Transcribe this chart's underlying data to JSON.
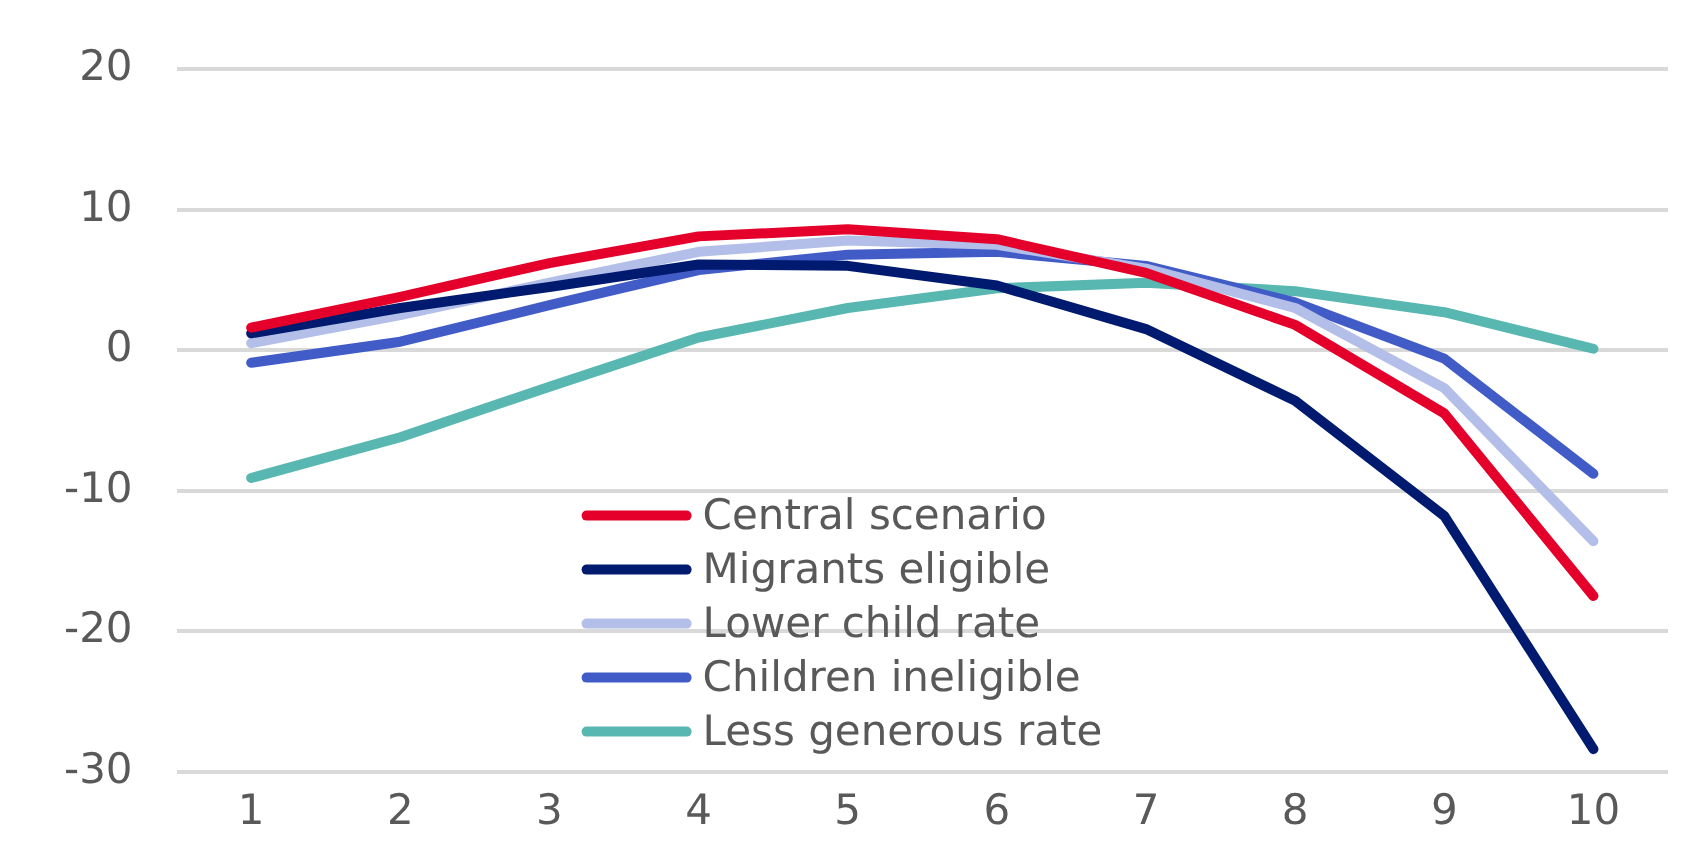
{
  "chart_data": {
    "type": "line",
    "categories": [
      "1",
      "2",
      "3",
      "4",
      "5",
      "6",
      "7",
      "8",
      "9",
      "10"
    ],
    "ylim": [
      -30,
      20
    ],
    "yticks": [
      -30,
      -20,
      -10,
      0,
      10,
      20
    ],
    "grid": "y",
    "legend": "bottom",
    "marker": "none",
    "line_style": "solid",
    "series": [
      {
        "name": "Central scenario",
        "color": "#e4002b",
        "values": [
          1.6,
          3.8,
          6.2,
          8.1,
          8.6,
          7.9,
          5.5,
          1.8,
          -4.5,
          -17.5
        ]
      },
      {
        "name": "Migrants eligible",
        "color": "#001a70",
        "values": [
          1.2,
          3.0,
          4.5,
          6.1,
          6.0,
          4.6,
          1.5,
          -3.6,
          -11.8,
          -28.4
        ]
      },
      {
        "name": "Lower child rate",
        "color": "#b3bfe8",
        "values": [
          0.5,
          2.5,
          4.8,
          7.0,
          7.8,
          7.5,
          5.8,
          3.0,
          -2.7,
          -13.6
        ]
      },
      {
        "name": "Children ineligible",
        "color": "#425cc7",
        "values": [
          -0.9,
          0.6,
          3.2,
          5.7,
          6.8,
          7.0,
          6.0,
          3.4,
          -0.6,
          -8.8
        ]
      },
      {
        "name": "Less generous rate",
        "color": "#58b7b0",
        "values": [
          -9.1,
          -6.2,
          -2.6,
          0.9,
          3.0,
          4.4,
          4.8,
          4.2,
          2.7,
          0.1
        ]
      }
    ]
  }
}
